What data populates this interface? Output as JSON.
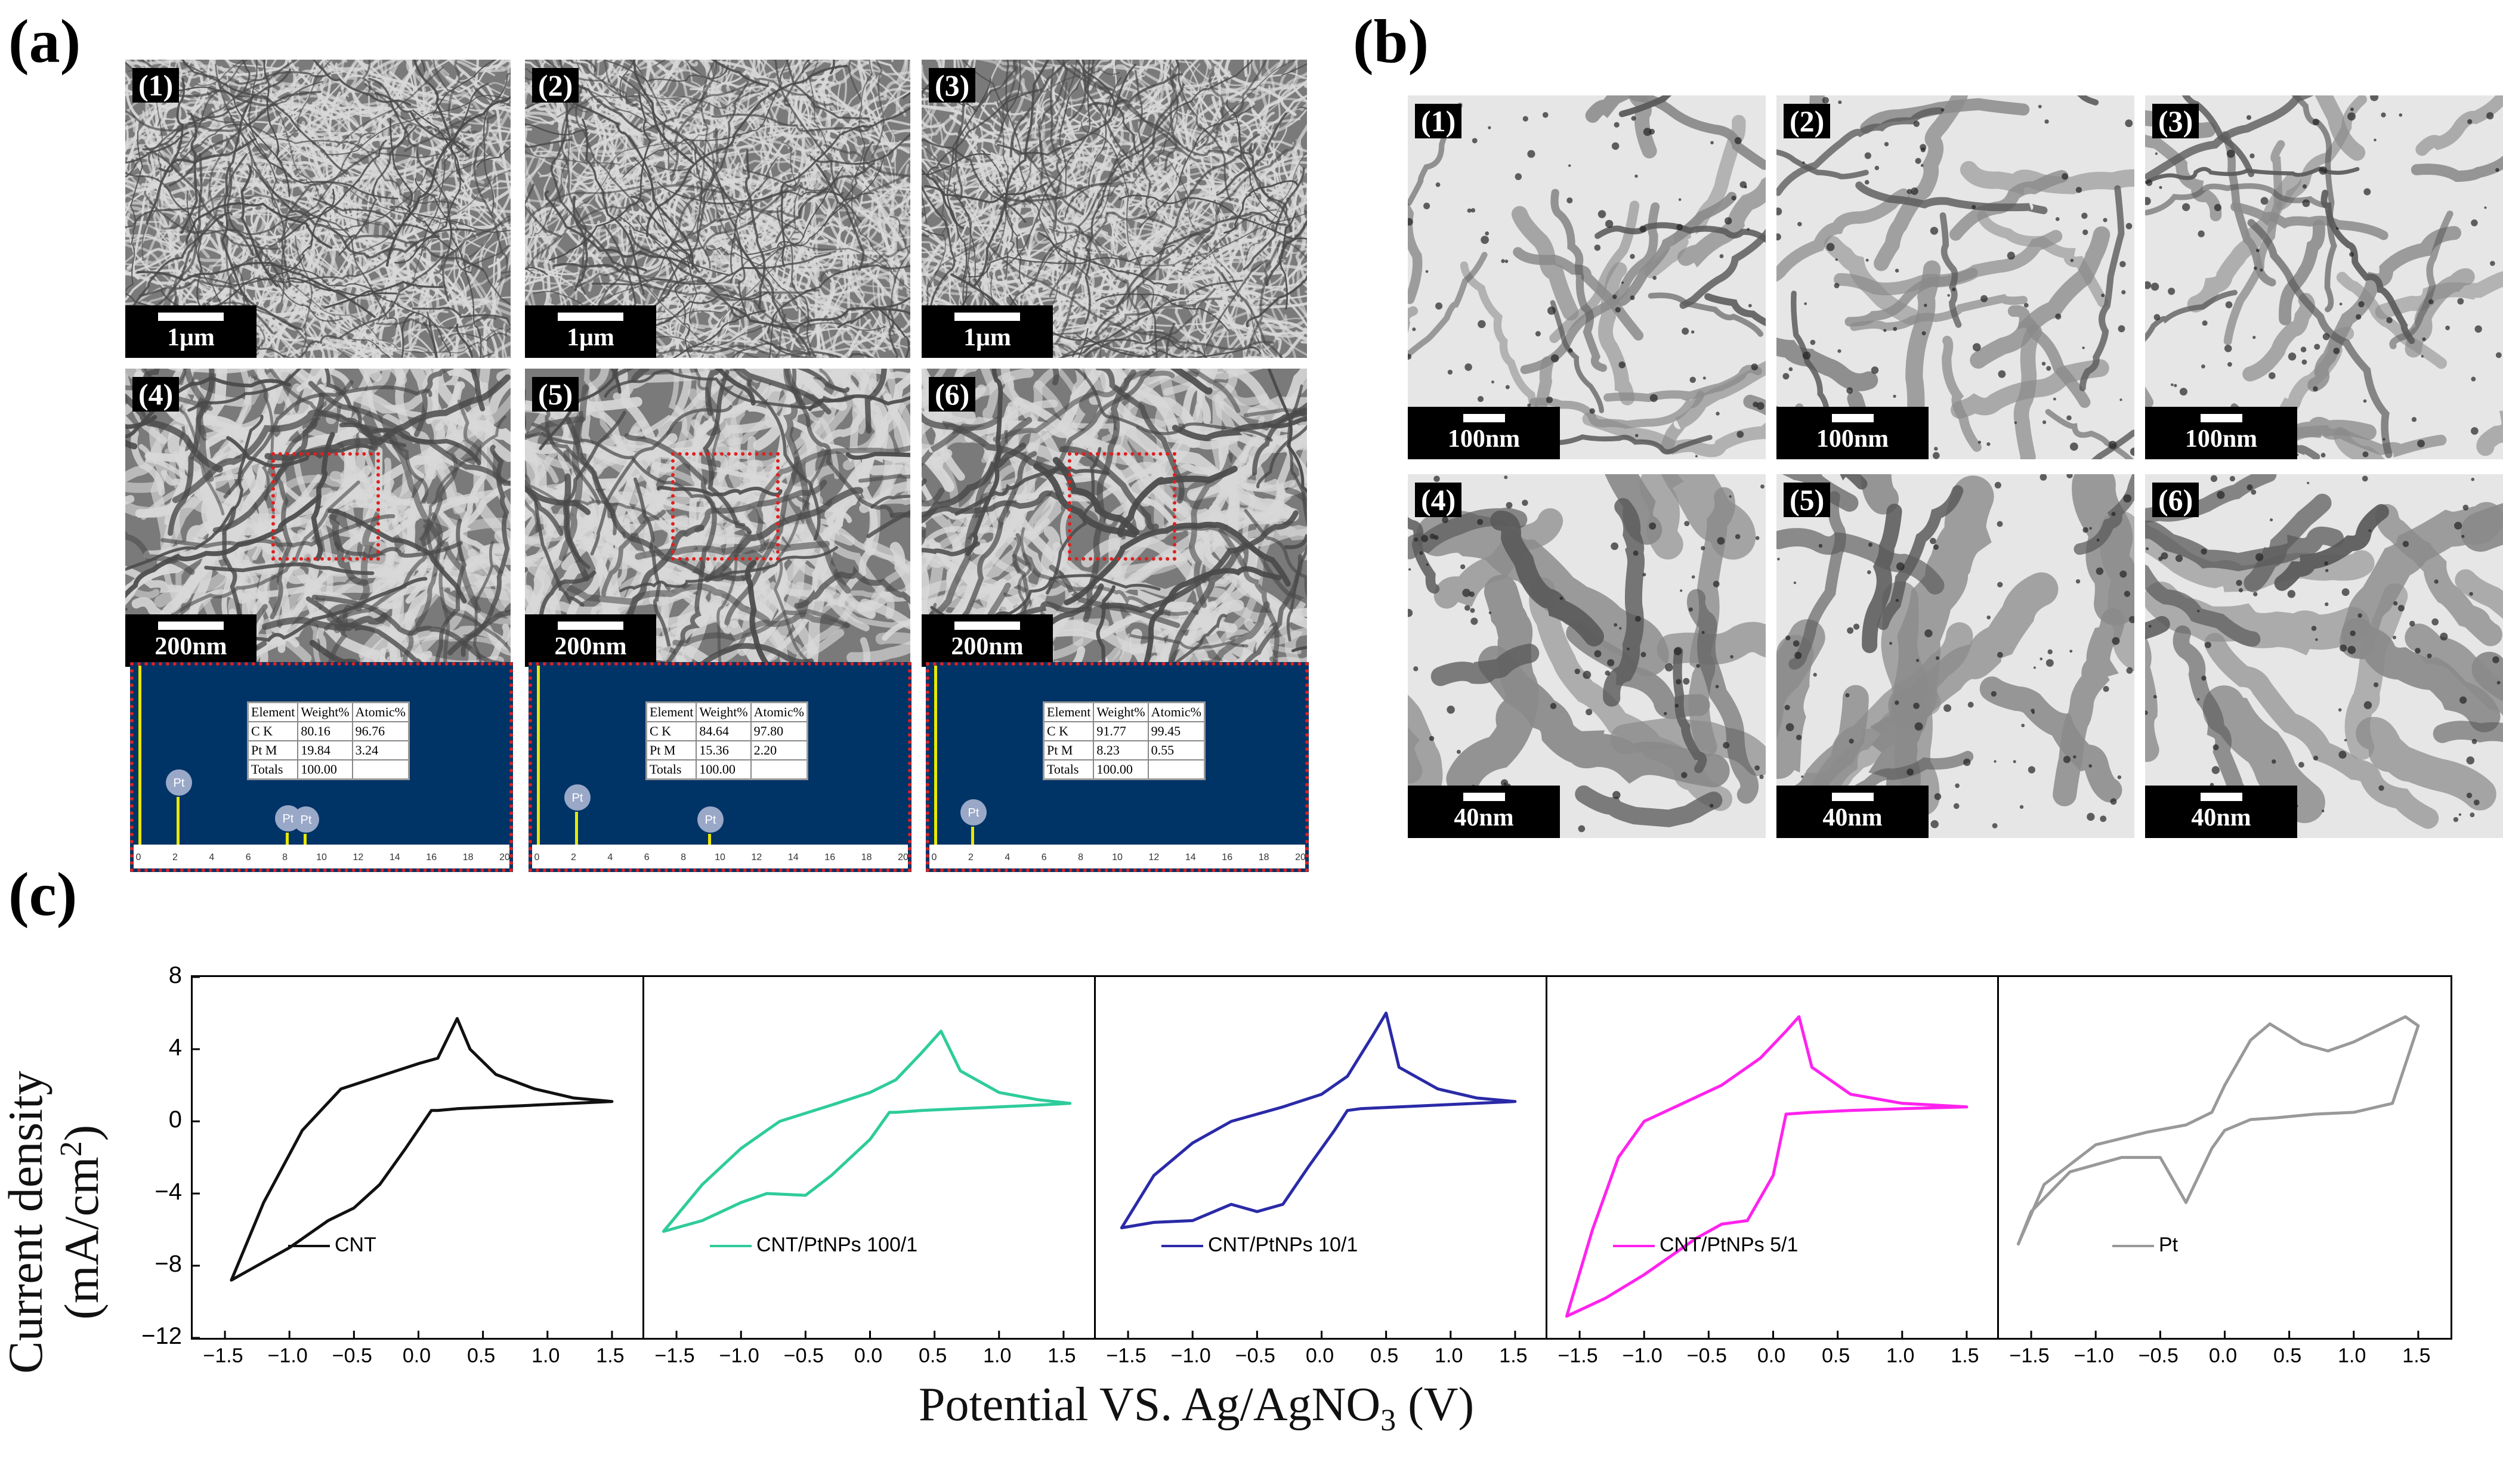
{
  "panel_labels": {
    "a": "(a)",
    "b": "(b)",
    "c": "(c)"
  },
  "sem": {
    "images": [
      {
        "label": "(1)",
        "scale": "1μm"
      },
      {
        "label": "(2)",
        "scale": "1μm"
      },
      {
        "label": "(3)",
        "scale": "1μm"
      },
      {
        "label": "(4)",
        "scale": "200nm"
      },
      {
        "label": "(5)",
        "scale": "200nm"
      },
      {
        "label": "(6)",
        "scale": "200nm"
      }
    ]
  },
  "edx": [
    {
      "rows": [
        [
          "Element",
          "Weight%",
          "Atomic%"
        ],
        [
          "C K",
          "80.16",
          "96.76"
        ],
        [
          "Pt M",
          "19.84",
          "3.24"
        ],
        [
          "Totals",
          "100.00",
          ""
        ]
      ],
      "peaks": [
        "C",
        "Pt",
        "Pt",
        "Pt"
      ],
      "xticks": [
        "0",
        "2",
        "4",
        "6",
        "8",
        "10",
        "12",
        "14",
        "16",
        "18",
        "20"
      ]
    },
    {
      "rows": [
        [
          "Element",
          "Weight%",
          "Atomic%"
        ],
        [
          "C K",
          "84.64",
          "97.80"
        ],
        [
          "Pt M",
          "15.36",
          "2.20"
        ],
        [
          "Totals",
          "100.00",
          ""
        ]
      ],
      "peaks": [
        "C",
        "Pt",
        "Pt"
      ],
      "xticks": [
        "0",
        "2",
        "4",
        "6",
        "8",
        "10",
        "12",
        "14",
        "16",
        "18",
        "20"
      ]
    },
    {
      "rows": [
        [
          "Element",
          "Weight%",
          "Atomic%"
        ],
        [
          "C K",
          "91.77",
          "99.45"
        ],
        [
          "Pt M",
          "8.23",
          "0.55"
        ],
        [
          "Totals",
          "100.00",
          ""
        ]
      ],
      "peaks": [
        "C",
        "Pt"
      ],
      "xticks": [
        "0",
        "2",
        "4",
        "6",
        "8",
        "10",
        "12",
        "14",
        "16",
        "18",
        "20"
      ]
    }
  ],
  "tem": {
    "images": [
      {
        "label": "(1)",
        "scale": "100nm"
      },
      {
        "label": "(2)",
        "scale": "100nm"
      },
      {
        "label": "(3)",
        "scale": "100nm"
      },
      {
        "label": "(4)",
        "scale": "40nm"
      },
      {
        "label": "(5)",
        "scale": "40nm"
      },
      {
        "label": "(6)",
        "scale": "40nm"
      }
    ]
  },
  "cv": {
    "ylabel": "Current density (mA/cm²)",
    "ylabel_main": "Current density (mA/cm",
    "ylabel_sup": "2",
    "ylabel_end": ")",
    "xlabel_main": "Potential VS. Ag/AgNO",
    "xlabel_sub": "3",
    "xlabel_end": " (V)",
    "yticks": [
      "8",
      "4",
      "0",
      "−4",
      "−8",
      "−12"
    ],
    "xticks": [
      "−1.5",
      "−1.0",
      "−0.5",
      "0.0",
      "0.5",
      "1.0",
      "1.5"
    ]
  },
  "chart_data": {
    "type": "line",
    "xlabel": "Potential VS. Ag/AgNO3 (V)",
    "ylabel": "Current density (mA/cm2)",
    "xlim": [
      -1.75,
      1.75
    ],
    "ylim": [
      -12,
      8
    ],
    "panels": [
      {
        "name": "CNT",
        "color": "#111111",
        "x": [
          -1.45,
          -1.2,
          -0.9,
          -0.6,
          -0.3,
          0.0,
          0.15,
          0.3,
          0.4,
          0.6,
          0.9,
          1.2,
          1.5,
          1.2,
          0.9,
          0.6,
          0.3,
          0.15,
          0.1,
          -0.1,
          -0.3,
          -0.5,
          -0.7,
          -1.0,
          -1.3,
          -1.45
        ],
        "y": [
          -8.8,
          -4.5,
          -0.5,
          1.8,
          2.5,
          3.2,
          3.5,
          5.7,
          4.0,
          2.6,
          1.8,
          1.3,
          1.1,
          1.0,
          0.9,
          0.8,
          0.7,
          0.6,
          0.6,
          -1.5,
          -3.5,
          -4.8,
          -5.5,
          -7.0,
          -8.2,
          -8.8
        ]
      },
      {
        "name": "CNT/PtNPs 100/1",
        "color": "#2ecc9a",
        "x": [
          -1.6,
          -1.3,
          -1.0,
          -0.7,
          -0.3,
          0.0,
          0.2,
          0.4,
          0.55,
          0.7,
          1.0,
          1.3,
          1.55,
          1.3,
          1.0,
          0.7,
          0.4,
          0.2,
          0.15,
          0.0,
          -0.3,
          -0.5,
          -0.8,
          -1.0,
          -1.3,
          -1.6
        ],
        "y": [
          -6.1,
          -3.5,
          -1.5,
          0.0,
          0.9,
          1.6,
          2.3,
          3.8,
          5.0,
          2.8,
          1.6,
          1.2,
          1.0,
          0.9,
          0.8,
          0.7,
          0.6,
          0.5,
          0.5,
          -1.0,
          -3.0,
          -4.1,
          -4.0,
          -4.5,
          -5.5,
          -6.1
        ]
      },
      {
        "name": "CNT/PtNPs 10/1",
        "color": "#2a2aa8",
        "x": [
          -1.55,
          -1.3,
          -1.0,
          -0.7,
          -0.3,
          0.0,
          0.2,
          0.4,
          0.5,
          0.6,
          0.9,
          1.2,
          1.5,
          1.2,
          0.9,
          0.6,
          0.3,
          0.2,
          0.1,
          -0.1,
          -0.3,
          -0.5,
          -0.7,
          -1.0,
          -1.3,
          -1.55
        ],
        "y": [
          -5.9,
          -3.0,
          -1.2,
          0.0,
          0.8,
          1.5,
          2.5,
          4.8,
          6.0,
          3.0,
          1.8,
          1.3,
          1.1,
          1.0,
          0.9,
          0.8,
          0.7,
          0.6,
          -0.5,
          -2.5,
          -4.6,
          -5.0,
          -4.6,
          -5.5,
          -5.6,
          -5.9
        ]
      },
      {
        "name": "CNT/PtNPs 5/1",
        "color": "#ff22ee",
        "x": [
          -1.6,
          -1.4,
          -1.2,
          -1.0,
          -0.7,
          -0.4,
          -0.1,
          0.1,
          0.2,
          0.3,
          0.6,
          1.0,
          1.5,
          1.0,
          0.6,
          0.3,
          0.1,
          0.0,
          -0.2,
          -0.4,
          -0.6,
          -0.8,
          -1.0,
          -1.3,
          -1.6
        ],
        "y": [
          -10.8,
          -6.0,
          -2.0,
          0.0,
          1.0,
          2.0,
          3.5,
          5.0,
          5.8,
          3.0,
          1.5,
          1.0,
          0.8,
          0.7,
          0.6,
          0.5,
          0.4,
          -3.0,
          -5.5,
          -5.7,
          -6.5,
          -7.5,
          -8.5,
          -9.8,
          -10.8
        ]
      },
      {
        "name": "Pt",
        "color": "#999999",
        "x": [
          -1.6,
          -1.4,
          -1.0,
          -0.6,
          -0.3,
          -0.1,
          0.0,
          0.2,
          0.35,
          0.6,
          0.8,
          1.0,
          1.2,
          1.4,
          1.5,
          1.3,
          1.0,
          0.7,
          0.4,
          0.2,
          0.0,
          -0.1,
          -0.2,
          -0.3,
          -0.5,
          -0.8,
          -1.2,
          -1.5,
          -1.6
        ],
        "y": [
          -6.8,
          -3.5,
          -1.3,
          -0.6,
          -0.2,
          0.5,
          2.0,
          4.5,
          5.4,
          4.3,
          3.9,
          4.4,
          5.1,
          5.8,
          5.3,
          1.0,
          0.5,
          0.4,
          0.2,
          0.1,
          -0.5,
          -1.5,
          -3.0,
          -4.5,
          -2.0,
          -2.0,
          -2.8,
          -5.0,
          -6.8
        ]
      }
    ]
  }
}
